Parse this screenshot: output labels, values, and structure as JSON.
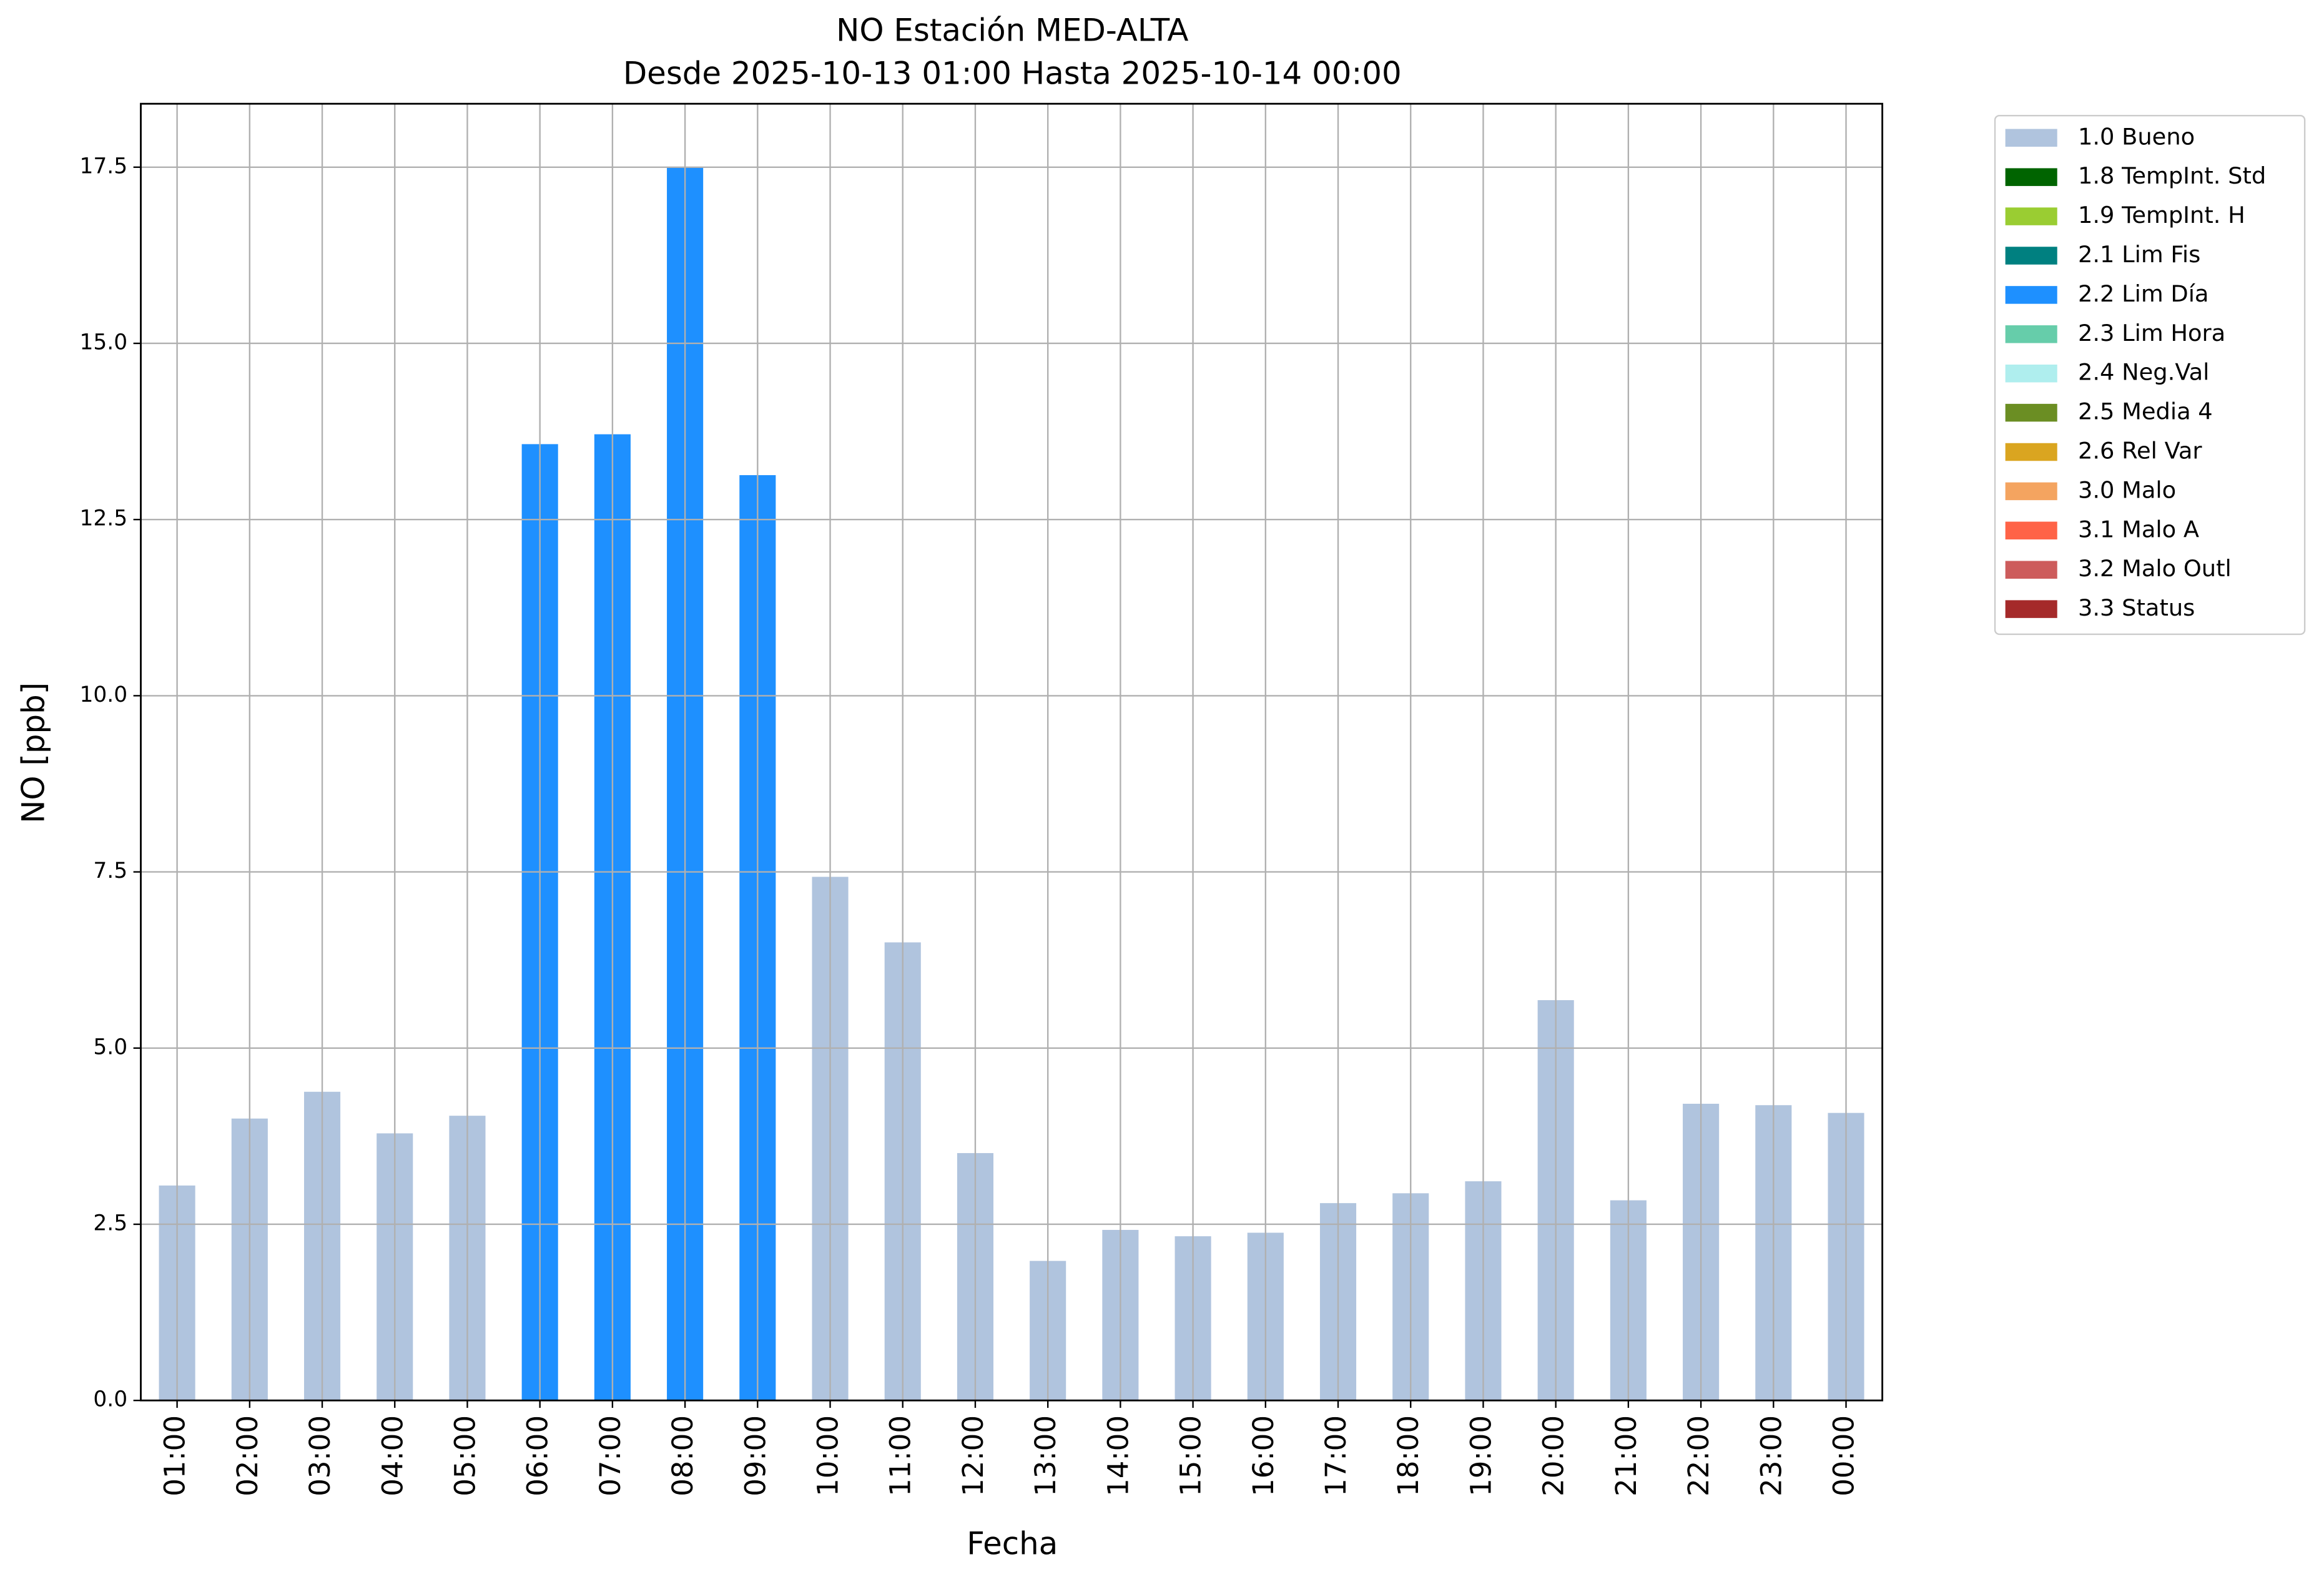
{
  "chart_data": {
    "type": "bar",
    "stacked": true,
    "title": "NO Estación MED-ALTA",
    "subtitle": "Desde 2025-10-13 01:00 Hasta 2025-10-14 00:00",
    "x_label": "Fecha",
    "y_label": "NO [ppb]",
    "categories": [
      "01:00",
      "02:00",
      "03:00",
      "04:00",
      "05:00",
      "06:00",
      "07:00",
      "08:00",
      "09:00",
      "10:00",
      "11:00",
      "12:00",
      "13:00",
      "14:00",
      "15:00",
      "16:00",
      "17:00",
      "18:00",
      "19:00",
      "20:00",
      "21:00",
      "22:00",
      "23:00",
      "00:00"
    ],
    "series": [
      {
        "name": "1.0 Bueno",
        "color": "#b0c4de",
        "values": [
          3.05,
          4.0,
          4.38,
          3.79,
          4.04,
          null,
          null,
          null,
          null,
          7.43,
          6.5,
          3.51,
          1.98,
          2.42,
          2.33,
          2.38,
          2.8,
          2.94,
          3.11,
          5.68,
          2.84,
          4.21,
          4.19,
          4.08
        ]
      },
      {
        "name": "1.8 TempInt. Std",
        "color": "#006400",
        "values": [
          null,
          null,
          null,
          null,
          null,
          null,
          null,
          null,
          null,
          null,
          null,
          null,
          null,
          null,
          null,
          null,
          null,
          null,
          null,
          null,
          null,
          null,
          null,
          null
        ]
      },
      {
        "name": "1.9 TempInt. H",
        "color": "#9acd32",
        "values": [
          null,
          null,
          null,
          null,
          null,
          null,
          null,
          null,
          null,
          null,
          null,
          null,
          null,
          null,
          null,
          null,
          null,
          null,
          null,
          null,
          null,
          null,
          null,
          null
        ]
      },
      {
        "name": "2.1 Lim Fis",
        "color": "#008080",
        "values": [
          null,
          null,
          null,
          null,
          null,
          null,
          null,
          null,
          null,
          null,
          null,
          null,
          null,
          null,
          null,
          null,
          null,
          null,
          null,
          null,
          null,
          null,
          null,
          null
        ]
      },
      {
        "name": "2.2 Lim Día",
        "color": "#1e90ff",
        "values": [
          null,
          null,
          null,
          null,
          null,
          13.57,
          13.71,
          17.5,
          13.13,
          null,
          null,
          null,
          null,
          null,
          null,
          null,
          null,
          null,
          null,
          null,
          null,
          null,
          null,
          null
        ]
      },
      {
        "name": "2.3 Lim Hora",
        "color": "#66cdaa",
        "values": [
          null,
          null,
          null,
          null,
          null,
          null,
          null,
          null,
          null,
          null,
          null,
          null,
          null,
          null,
          null,
          null,
          null,
          null,
          null,
          null,
          null,
          null,
          null,
          null
        ]
      },
      {
        "name": "2.4 Neg.Val",
        "color": "#afeeee",
        "values": [
          null,
          null,
          null,
          null,
          null,
          null,
          null,
          null,
          null,
          null,
          null,
          null,
          null,
          null,
          null,
          null,
          null,
          null,
          null,
          null,
          null,
          null,
          null,
          null
        ]
      },
      {
        "name": "2.5 Media 4",
        "color": "#6b8e23",
        "values": [
          null,
          null,
          null,
          null,
          null,
          null,
          null,
          null,
          null,
          null,
          null,
          null,
          null,
          null,
          null,
          null,
          null,
          null,
          null,
          null,
          null,
          null,
          null,
          null
        ]
      },
      {
        "name": "2.6 Rel Var",
        "color": "#daa520",
        "values": [
          null,
          null,
          null,
          null,
          null,
          null,
          null,
          null,
          null,
          null,
          null,
          null,
          null,
          null,
          null,
          null,
          null,
          null,
          null,
          null,
          null,
          null,
          null,
          null
        ]
      },
      {
        "name": "3.0 Malo",
        "color": "#f4a460",
        "values": [
          null,
          null,
          null,
          null,
          null,
          null,
          null,
          null,
          null,
          null,
          null,
          null,
          null,
          null,
          null,
          null,
          null,
          null,
          null,
          null,
          null,
          null,
          null,
          null
        ]
      },
      {
        "name": "3.1 Malo A",
        "color": "#ff6347",
        "values": [
          null,
          null,
          null,
          null,
          null,
          null,
          null,
          null,
          null,
          null,
          null,
          null,
          null,
          null,
          null,
          null,
          null,
          null,
          null,
          null,
          null,
          null,
          null,
          null
        ]
      },
      {
        "name": "3.2 Malo Outl",
        "color": "#cd5c5c",
        "values": [
          null,
          null,
          null,
          null,
          null,
          null,
          null,
          null,
          null,
          null,
          null,
          null,
          null,
          null,
          null,
          null,
          null,
          null,
          null,
          null,
          null,
          null,
          null,
          null
        ]
      },
      {
        "name": "3.3 Status",
        "color": "#a52a2a",
        "values": [
          null,
          null,
          null,
          null,
          null,
          null,
          null,
          null,
          null,
          null,
          null,
          null,
          null,
          null,
          null,
          null,
          null,
          null,
          null,
          null,
          null,
          null,
          null,
          null
        ]
      }
    ],
    "ylim": [
      0,
      18.4
    ],
    "yticks": [
      {
        "value": 0,
        "label": "0.0"
      },
      {
        "value": 2.5,
        "label": "2.5"
      },
      {
        "value": 5,
        "label": "5.0"
      },
      {
        "value": 7.5,
        "label": "7.5"
      },
      {
        "value": 10,
        "label": "10.0"
      },
      {
        "value": 12.5,
        "label": "12.5"
      },
      {
        "value": 15,
        "label": "15.0"
      },
      {
        "value": 17.5,
        "label": "17.5"
      }
    ],
    "grid": true,
    "legend": "outside right"
  }
}
